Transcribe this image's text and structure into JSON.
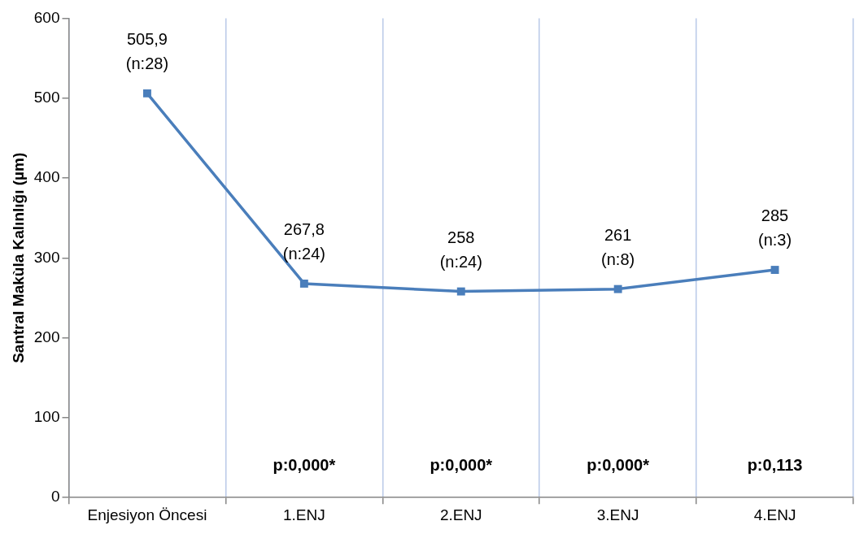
{
  "chart_data": {
    "type": "line",
    "ylabel": "Santral Makùla Kalınlığı (µm)",
    "categories": [
      "Enjesiyon Öncesi",
      "1.ENJ",
      "2.ENJ",
      "3.ENJ",
      "4.ENJ"
    ],
    "series": [
      {
        "color": "#4a7ebb",
        "values": [
          505.9,
          267.8,
          258,
          261,
          285
        ],
        "value_labels": [
          "505,9\n(n:28)",
          "267,8\n(n:24)",
          "258\n(n:24)",
          "261\n(n:8)",
          "285\n(n:3)"
        ]
      }
    ],
    "ylim": [
      0,
      600
    ],
    "yticks": [
      0,
      100,
      200,
      300,
      400,
      500,
      600
    ],
    "grid": "x",
    "legend": false,
    "marker": "square",
    "line_style": "solid",
    "annotations": [
      "p:0,000*",
      "p:0,000*",
      "p:0,000*",
      "p:0,113"
    ]
  }
}
